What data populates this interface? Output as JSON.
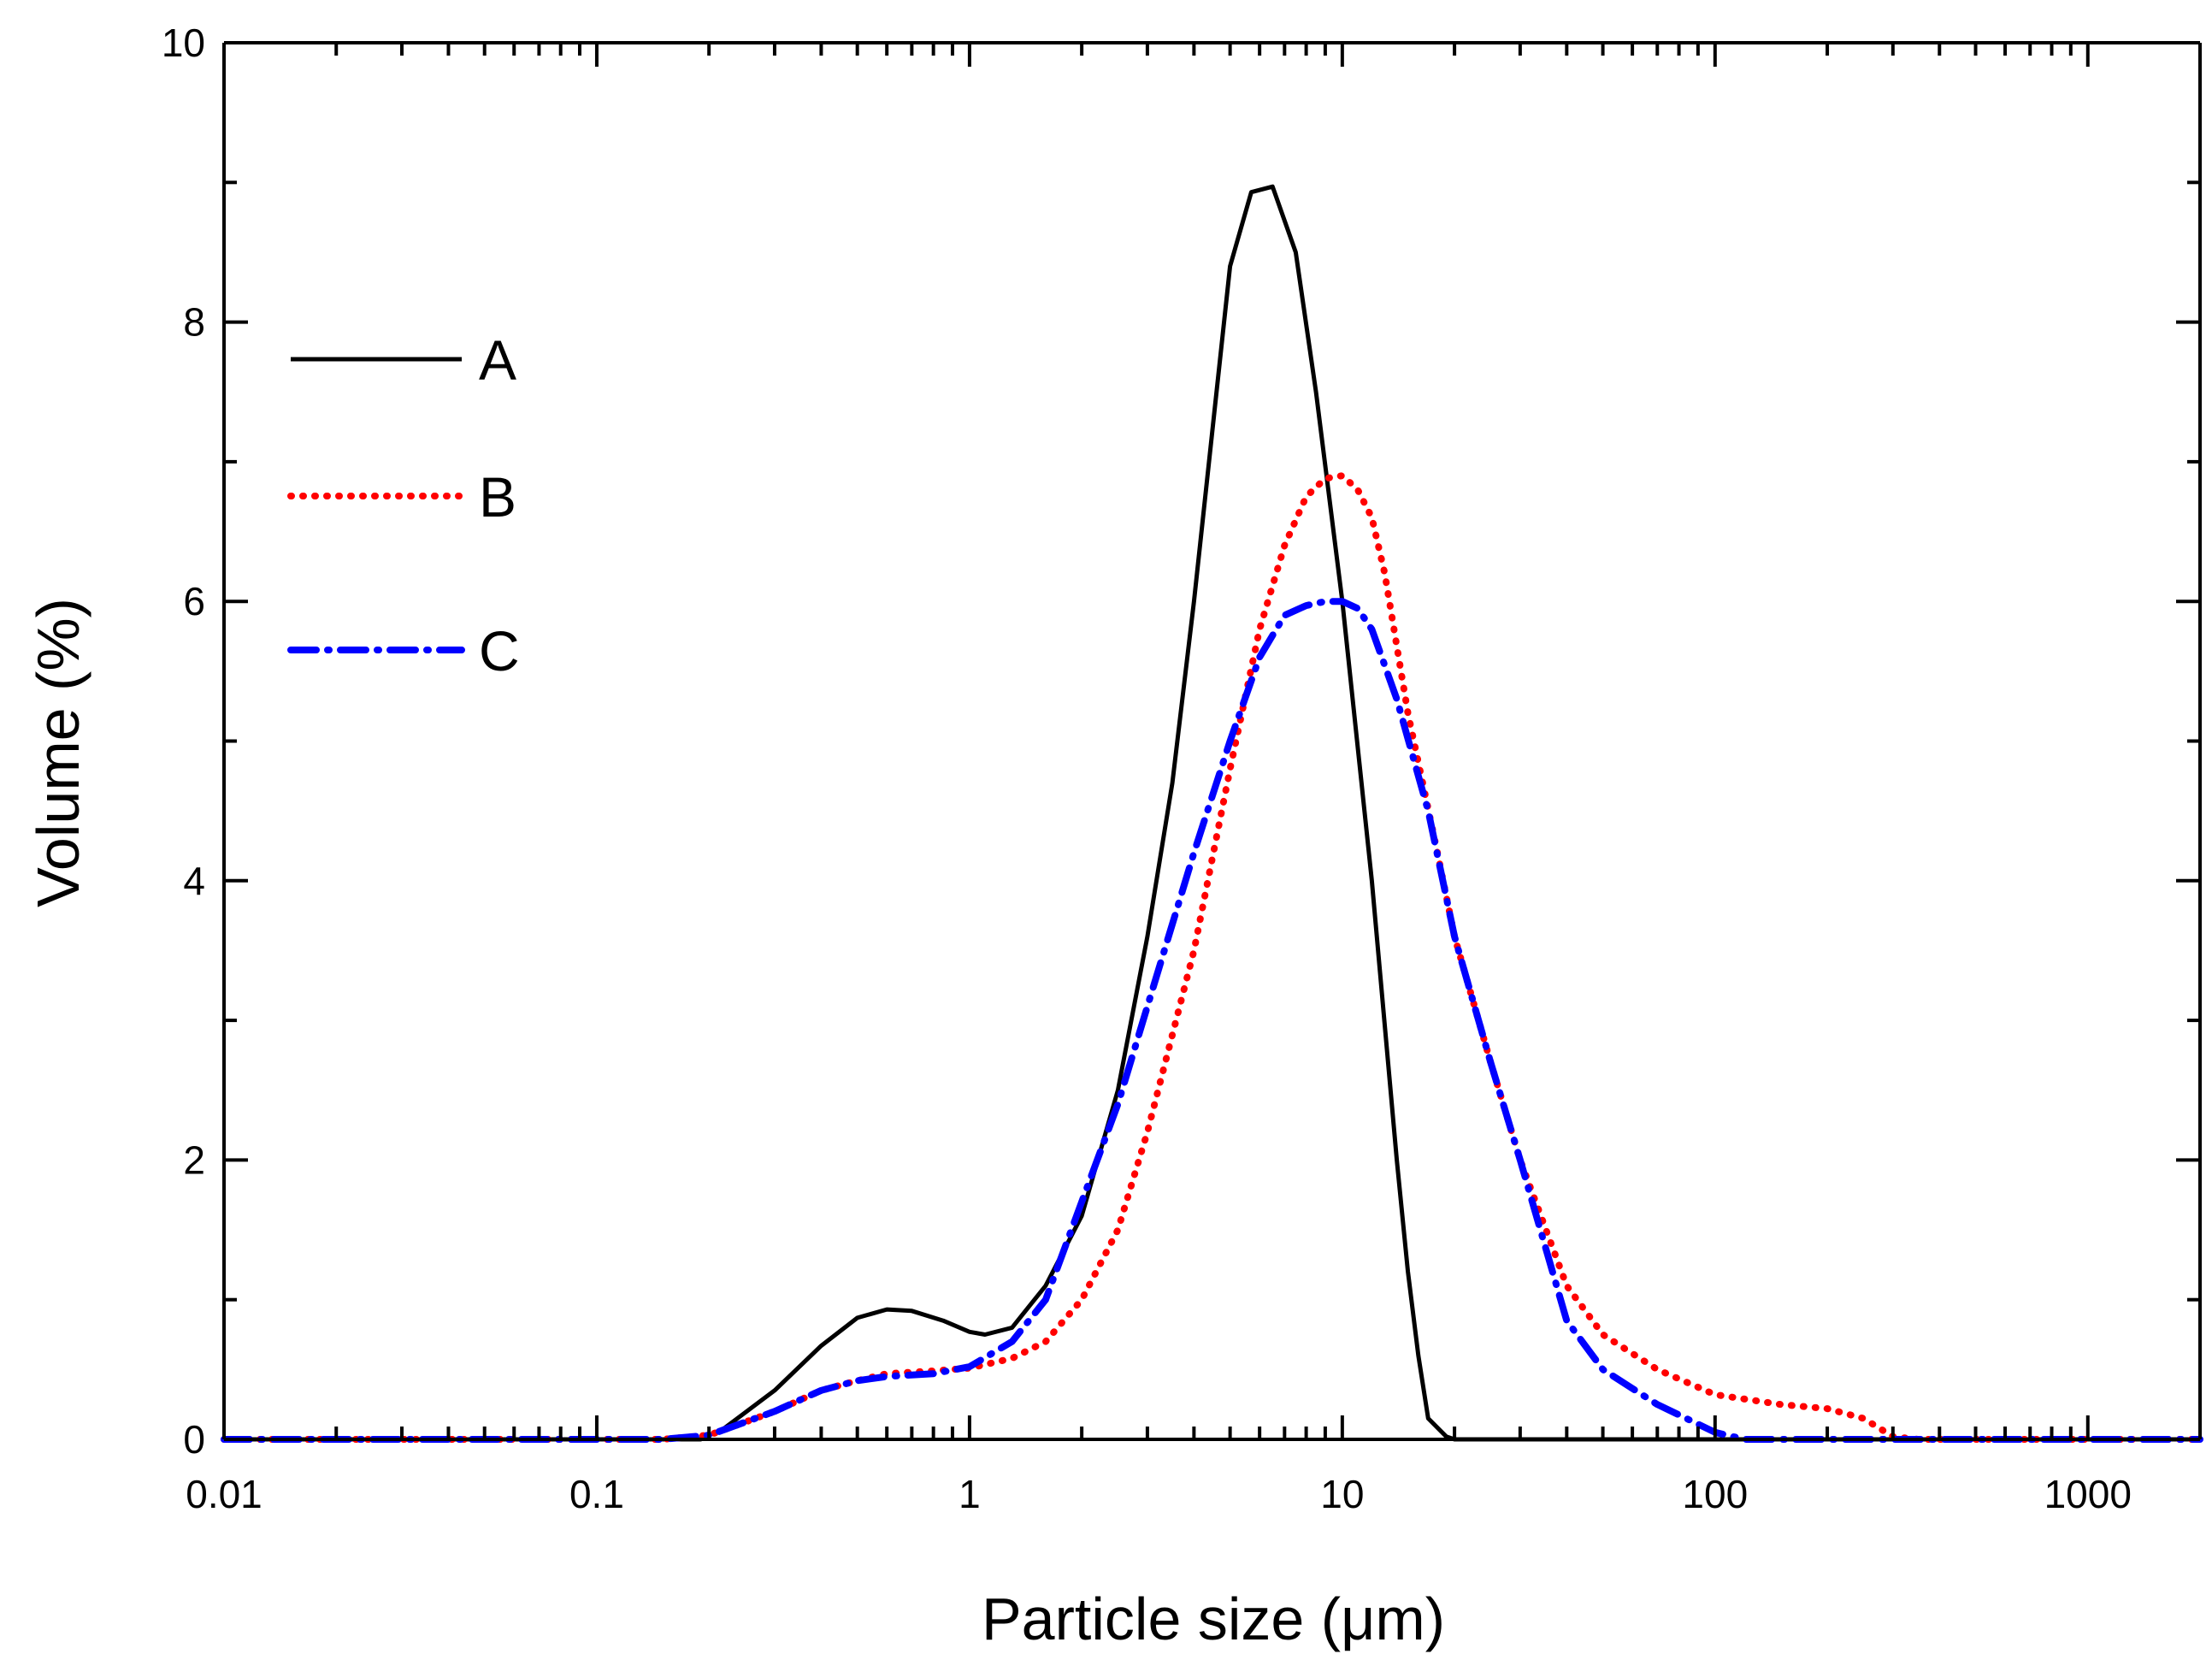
{
  "chart_data": {
    "type": "line",
    "title": "",
    "xlabel": "Particle size (μm)",
    "ylabel": "Volume (%)",
    "xscale": "log",
    "xlim": [
      0.01,
      2000
    ],
    "ylim": [
      0,
      10
    ],
    "grid": false,
    "legend_position": "top-left",
    "x_ticks": [
      {
        "value": 0.01,
        "label": "0.01"
      },
      {
        "value": 0.1,
        "label": "0.1"
      },
      {
        "value": 1,
        "label": "1"
      },
      {
        "value": 10,
        "label": "10"
      },
      {
        "value": 100,
        "label": "100"
      },
      {
        "value": 1000,
        "label": "1000"
      }
    ],
    "y_ticks": [
      {
        "value": 0,
        "label": "0"
      },
      {
        "value": 2,
        "label": "2"
      },
      {
        "value": 4,
        "label": "4"
      },
      {
        "value": 6,
        "label": "6"
      },
      {
        "value": 8,
        "label": "8"
      },
      {
        "value": 10,
        "label": "10"
      }
    ],
    "series": [
      {
        "name": "A",
        "color": "#000000",
        "style": "solid",
        "points": [
          [
            0.01,
            0
          ],
          [
            0.05,
            0
          ],
          [
            0.1,
            0
          ],
          [
            0.15,
            0
          ],
          [
            0.19,
            0
          ],
          [
            0.22,
            0.08
          ],
          [
            0.3,
            0.35
          ],
          [
            0.4,
            0.67
          ],
          [
            0.5,
            0.87
          ],
          [
            0.6,
            0.93
          ],
          [
            0.7,
            0.92
          ],
          [
            0.85,
            0.85
          ],
          [
            1.0,
            0.77
          ],
          [
            1.1,
            0.75
          ],
          [
            1.3,
            0.8
          ],
          [
            1.6,
            1.1
          ],
          [
            2.0,
            1.6
          ],
          [
            2.5,
            2.5
          ],
          [
            3.0,
            3.6
          ],
          [
            3.5,
            4.7
          ],
          [
            4.0,
            6.0
          ],
          [
            5.0,
            8.4
          ],
          [
            5.7,
            8.93
          ],
          [
            6.5,
            8.97
          ],
          [
            7.5,
            8.5
          ],
          [
            8.5,
            7.5
          ],
          [
            10,
            6.0
          ],
          [
            12,
            4.0
          ],
          [
            14,
            2.0
          ],
          [
            15,
            1.2
          ],
          [
            16,
            0.6
          ],
          [
            17,
            0.15
          ],
          [
            19,
            0.02
          ],
          [
            20,
            0
          ],
          [
            50,
            0
          ],
          [
            100,
            0
          ],
          [
            500,
            0
          ],
          [
            1000,
            0
          ],
          [
            2000,
            0
          ]
        ]
      },
      {
        "name": "B",
        "color": "#ff0000",
        "style": "dotted",
        "points": [
          [
            0.01,
            0
          ],
          [
            0.05,
            0
          ],
          [
            0.1,
            0
          ],
          [
            0.15,
            0
          ],
          [
            0.2,
            0.03
          ],
          [
            0.3,
            0.2
          ],
          [
            0.4,
            0.35
          ],
          [
            0.5,
            0.42
          ],
          [
            0.6,
            0.47
          ],
          [
            0.8,
            0.49
          ],
          [
            1.0,
            0.51
          ],
          [
            1.3,
            0.58
          ],
          [
            1.6,
            0.7
          ],
          [
            2.0,
            1.0
          ],
          [
            2.5,
            1.5
          ],
          [
            3.0,
            2.2
          ],
          [
            4.0,
            3.5
          ],
          [
            5.0,
            4.8
          ],
          [
            6.0,
            5.8
          ],
          [
            7.0,
            6.4
          ],
          [
            8.0,
            6.75
          ],
          [
            9.0,
            6.88
          ],
          [
            10,
            6.9
          ],
          [
            11,
            6.8
          ],
          [
            12,
            6.6
          ],
          [
            13,
            6.2
          ],
          [
            15,
            5.2
          ],
          [
            18,
            4.2
          ],
          [
            20,
            3.6
          ],
          [
            25,
            2.7
          ],
          [
            30,
            2.0
          ],
          [
            40,
            1.1
          ],
          [
            50,
            0.75
          ],
          [
            70,
            0.5
          ],
          [
            100,
            0.32
          ],
          [
            150,
            0.25
          ],
          [
            200,
            0.22
          ],
          [
            250,
            0.15
          ],
          [
            300,
            0.02
          ],
          [
            350,
            0
          ],
          [
            500,
            0
          ],
          [
            1000,
            0
          ],
          [
            2000,
            0
          ]
        ]
      },
      {
        "name": "C",
        "color": "#0000ff",
        "style": "dash-dot",
        "points": [
          [
            0.01,
            0
          ],
          [
            0.05,
            0
          ],
          [
            0.1,
            0
          ],
          [
            0.15,
            0
          ],
          [
            0.2,
            0.03
          ],
          [
            0.3,
            0.2
          ],
          [
            0.4,
            0.35
          ],
          [
            0.5,
            0.42
          ],
          [
            0.6,
            0.45
          ],
          [
            0.8,
            0.47
          ],
          [
            1.0,
            0.52
          ],
          [
            1.3,
            0.7
          ],
          [
            1.6,
            1.0
          ],
          [
            2.0,
            1.7
          ],
          [
            2.5,
            2.4
          ],
          [
            3.0,
            3.1
          ],
          [
            4.0,
            4.2
          ],
          [
            5.0,
            5.0
          ],
          [
            6.0,
            5.6
          ],
          [
            7.0,
            5.9
          ],
          [
            8.0,
            5.97
          ],
          [
            9.0,
            6.0
          ],
          [
            10,
            6.0
          ],
          [
            11,
            5.95
          ],
          [
            12,
            5.8
          ],
          [
            14,
            5.3
          ],
          [
            17,
            4.5
          ],
          [
            20,
            3.6
          ],
          [
            25,
            2.7
          ],
          [
            30,
            2.0
          ],
          [
            40,
            0.85
          ],
          [
            50,
            0.5
          ],
          [
            70,
            0.25
          ],
          [
            100,
            0.05
          ],
          [
            120,
            0
          ],
          [
            200,
            0
          ],
          [
            500,
            0
          ],
          [
            1000,
            0
          ],
          [
            2000,
            0
          ]
        ]
      }
    ]
  }
}
